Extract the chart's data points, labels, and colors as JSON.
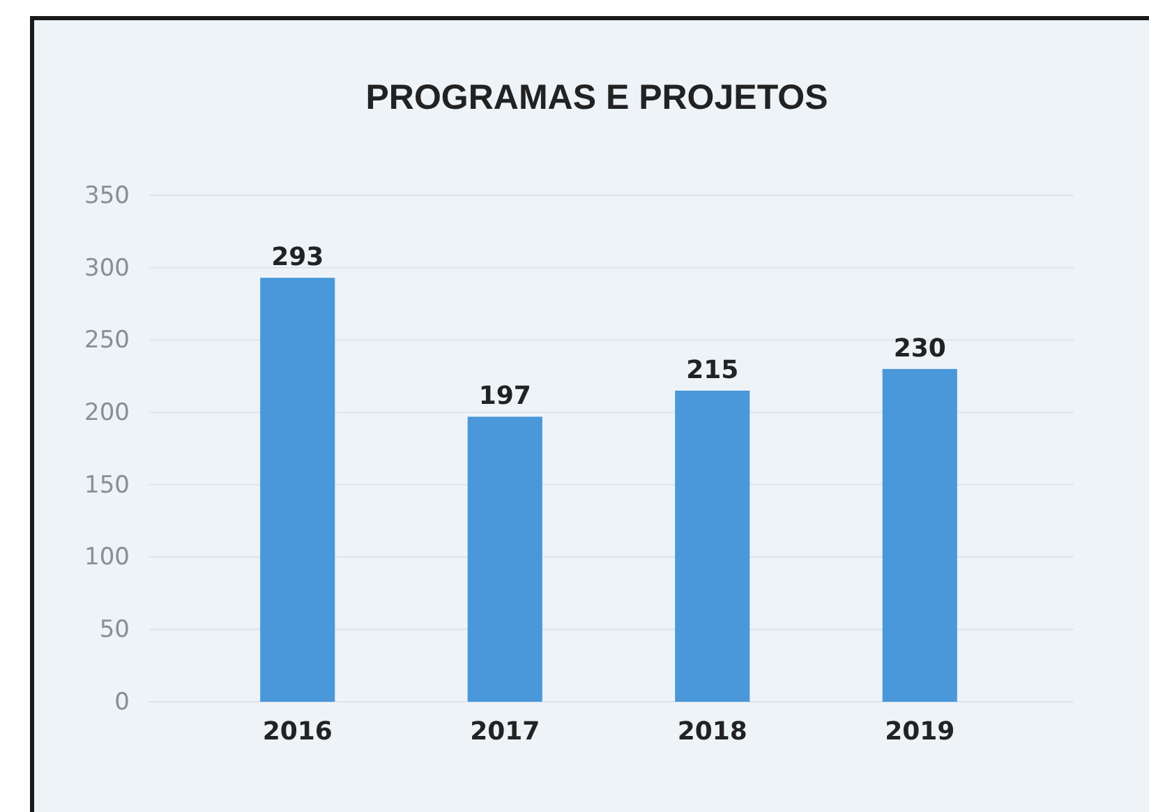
{
  "chart_data": {
    "type": "bar",
    "title": "PROGRAMAS E PROJETOS",
    "categories": [
      "2016",
      "2017",
      "2018",
      "2019"
    ],
    "values": [
      293,
      197,
      215,
      230
    ],
    "color": "#4a97da",
    "ylim": [
      0,
      350
    ],
    "yticks": [
      0,
      50,
      100,
      150,
      200,
      250,
      300,
      350
    ],
    "grid": "y",
    "data_labels": true
  }
}
